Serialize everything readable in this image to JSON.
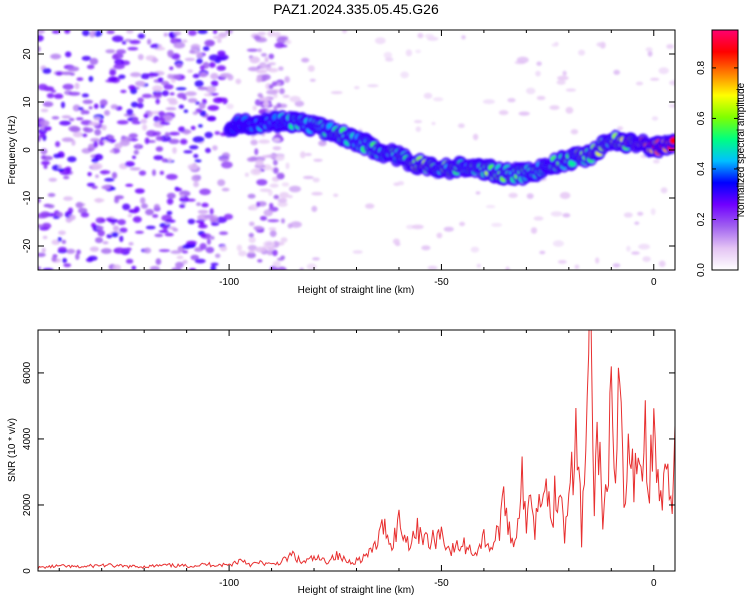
{
  "title": "PAZ1.2024.335.05.45.G26",
  "chart_data": [
    {
      "type": "heatmap",
      "xlabel": "Height of straight line (km)",
      "ylabel": "Frequency (Hz)",
      "xlim": [
        -145,
        5
      ],
      "ylim": [
        -25,
        25
      ],
      "xticks": [
        -100,
        -50,
        0
      ],
      "yticks": [
        -20,
        -10,
        0,
        10,
        20
      ],
      "xtick_labels": [
        "-100",
        "-50",
        "0"
      ],
      "ytick_labels": [
        "-20",
        "-10",
        "0",
        "10",
        "20"
      ],
      "colorbar": {
        "label": "Normalized spectral amplitude",
        "range": [
          0,
          0.95
        ],
        "ticks": [
          "0.0",
          "0.2",
          "0.4",
          "0.6",
          "0.8"
        ],
        "tick_values": [
          0.0,
          0.2,
          0.4,
          0.6,
          0.8
        ],
        "colors": [
          "#ffffff",
          "#e4c4f4",
          "#a060f0",
          "#7000ff",
          "#0000ff",
          "#00c0ff",
          "#00ff80",
          "#80ff00",
          "#ffff00",
          "#ff8000",
          "#ff0000",
          "#ff0070"
        ]
      },
      "ridge": {
        "name": "",
        "x": [
          -100,
          -95,
          -90,
          -85,
          -80,
          -75,
          -70,
          -65,
          -60,
          -55,
          -50,
          -45,
          -40,
          -35,
          -30,
          -25,
          -20,
          -15,
          -10,
          -5,
          0,
          5
        ],
        "y": [
          5,
          5.5,
          6,
          6,
          5,
          3.5,
          2,
          0,
          -1.5,
          -3,
          -4,
          -3.5,
          -4,
          -5,
          -5,
          -3.5,
          -2,
          -1,
          2,
          1.5,
          0.5,
          1.5
        ],
        "strength": [
          0.35,
          0.4,
          0.4,
          0.45,
          0.45,
          0.5,
          0.45,
          0.5,
          0.55,
          0.6,
          0.55,
          0.5,
          0.55,
          0.55,
          0.5,
          0.5,
          0.55,
          0.6,
          0.6,
          0.65,
          0.8,
          0.9
        ]
      }
    },
    {
      "type": "line",
      "xlabel": "Height of straight line (km)",
      "ylabel": "SNR (10 * v/v)",
      "xlim": [
        -145,
        5
      ],
      "ylim": [
        0,
        7300
      ],
      "xticks": [
        -100,
        -50,
        0
      ],
      "yticks": [
        0,
        2000,
        4000,
        6000
      ],
      "xtick_labels": [
        "-100",
        "-50",
        "0"
      ],
      "ytick_labels": [
        "0",
        "2000",
        "4000",
        "6000"
      ],
      "color": "#e83030",
      "series": [
        {
          "name": "",
          "x": [
            -145,
            -140,
            -135,
            -130,
            -125,
            -120,
            -115,
            -110,
            -105,
            -100,
            -97,
            -95,
            -92,
            -90,
            -87,
            -85,
            -83,
            -80,
            -77,
            -75,
            -72,
            -70,
            -67,
            -65,
            -63,
            -62,
            -60,
            -58,
            -55,
            -53,
            -50,
            -48,
            -45,
            -42,
            -40,
            -38,
            -36,
            -35,
            -33,
            -31,
            -30,
            -29,
            -28,
            -26,
            -25,
            -24,
            -22,
            -21,
            -20,
            -19,
            -18,
            -17,
            -16,
            -15,
            -14,
            -13,
            -12,
            -11,
            -10,
            -9,
            -8,
            -7,
            -6,
            -5,
            -4,
            -3,
            -2,
            -1,
            0,
            1,
            2,
            3,
            4,
            5
          ],
          "y": [
            100,
            150,
            120,
            180,
            140,
            130,
            170,
            150,
            200,
            180,
            350,
            200,
            250,
            180,
            320,
            500,
            250,
            380,
            300,
            480,
            280,
            320,
            500,
            900,
            1500,
            700,
            1500,
            900,
            1300,
            800,
            1200,
            600,
            800,
            550,
            1000,
            700,
            1500,
            2100,
            700,
            2800,
            1000,
            3000,
            1300,
            3400,
            2200,
            1700,
            3100,
            1000,
            3300,
            2600,
            4300,
            1000,
            3700,
            7200,
            2200,
            4400,
            1200,
            3300,
            4600,
            2100,
            5800,
            1800,
            3400,
            2800,
            3800,
            3100,
            4000,
            3000,
            3800,
            2800,
            2000,
            2800,
            1700,
            4400
          ]
        }
      ]
    }
  ]
}
